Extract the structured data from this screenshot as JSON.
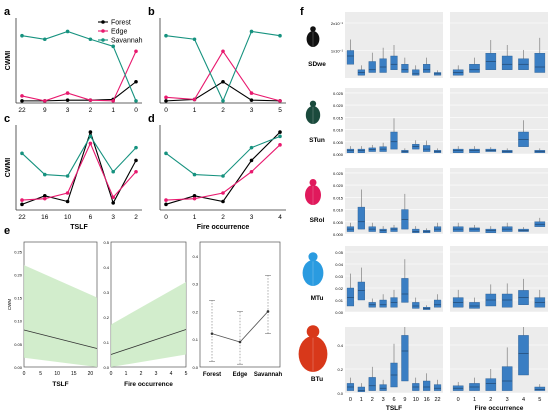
{
  "panel_letters": {
    "a": "a",
    "b": "b",
    "c": "c",
    "d": "d",
    "e": "e",
    "f": "f"
  },
  "colors": {
    "forest": "#000000",
    "edge": "#e8196e",
    "savannah": "#16927f",
    "band": "#cdebc6",
    "box": "#3a7ec3",
    "beetle_sdwe": "#111111",
    "beetle_stun": "#1a4a3c",
    "beetle_srol": "#e0195c",
    "beetle_mtu": "#2a9be0",
    "beetle_btu": "#d8381a"
  },
  "chart_data": [
    {
      "id": "a",
      "type": "line",
      "ylabel": "CWMI",
      "categories": [
        "22",
        "9",
        "3",
        "2",
        "1",
        "0"
      ],
      "ylim": [
        0,
        0.12
      ],
      "series": [
        {
          "name": "Forest",
          "color": "#000000",
          "values": [
            0.003,
            0.003,
            0.004,
            0.004,
            0.005,
            0.03
          ]
        },
        {
          "name": "Edge",
          "color": "#e8196e",
          "values": [
            0.01,
            0.003,
            0.014,
            0.004,
            0.003,
            0.073
          ]
        },
        {
          "name": "Savannah",
          "color": "#16927f",
          "values": [
            0.095,
            0.09,
            0.101,
            0.09,
            0.08,
            0.003
          ]
        }
      ],
      "legend": {
        "placement": "top-right",
        "items": [
          "Forest",
          "Edge",
          "Savannah"
        ]
      }
    },
    {
      "id": "b",
      "type": "line",
      "categories": [
        "0",
        "1",
        "2",
        "3",
        "5"
      ],
      "ylim": [
        0,
        0.12
      ],
      "series": [
        {
          "name": "Forest",
          "color": "#000000",
          "values": [
            0.003,
            0.005,
            0.03,
            0.004,
            0.003
          ]
        },
        {
          "name": "Edge",
          "color": "#e8196e",
          "values": [
            0.008,
            0.005,
            0.073,
            0.014,
            0.003
          ]
        },
        {
          "name": "Savannah",
          "color": "#16927f",
          "values": [
            0.095,
            0.09,
            0.003,
            0.101,
            0.095
          ]
        }
      ]
    },
    {
      "id": "c",
      "type": "line",
      "ylabel": "CWMI",
      "xlabel": "TSLF",
      "categories": [
        "22",
        "16",
        "10",
        "6",
        "3",
        "2"
      ],
      "ylim": [
        0,
        0.6
      ],
      "series": [
        {
          "name": "Forest",
          "color": "#000000",
          "values": [
            0.04,
            0.1,
            0.06,
            0.55,
            0.05,
            0.35
          ]
        },
        {
          "name": "Edge",
          "color": "#e8196e",
          "values": [
            0.07,
            0.08,
            0.12,
            0.47,
            0.09,
            0.27
          ]
        },
        {
          "name": "Savannah",
          "color": "#16927f",
          "values": [
            0.4,
            0.25,
            0.24,
            0.52,
            0.27,
            0.44
          ]
        }
      ]
    },
    {
      "id": "d",
      "type": "line",
      "xlabel": "Fire occurrence",
      "categories": [
        "0",
        "1",
        "2",
        "3",
        "4"
      ],
      "ylim": [
        0,
        0.6
      ],
      "series": [
        {
          "name": "Forest",
          "color": "#000000",
          "values": [
            0.04,
            0.1,
            0.06,
            0.35,
            0.55
          ]
        },
        {
          "name": "Edge",
          "color": "#e8196e",
          "values": [
            0.07,
            0.08,
            0.12,
            0.27,
            0.46
          ]
        },
        {
          "name": "Savannah",
          "color": "#16927f",
          "values": [
            0.4,
            0.25,
            0.24,
            0.44,
            0.52
          ]
        }
      ]
    },
    {
      "id": "e1",
      "type": "line",
      "ylabel": "CWM",
      "xlabel": "TSLF",
      "x": [
        0,
        22
      ],
      "xlim": [
        0,
        22
      ],
      "xticks": [
        "0",
        "5",
        "10",
        "15",
        "20"
      ],
      "ylim": [
        0,
        0.27
      ],
      "yticks": [
        "0.00",
        "0.05",
        "0.10",
        "0.15",
        "0.20",
        "0.25"
      ],
      "fit": {
        "y0": 0.08,
        "y1": 0.04
      },
      "band": {
        "lo0": 0.02,
        "lo1": 0.0,
        "hi0": 0.22,
        "hi1": 0.15
      }
    },
    {
      "id": "e2",
      "type": "line",
      "xlabel": "Fire occurrence",
      "xlim": [
        0,
        5
      ],
      "xticks": [
        "0",
        "1",
        "2",
        "3",
        "4",
        "5"
      ],
      "ylim": [
        0,
        0.5
      ],
      "yticks": [
        "0.0",
        "0.1",
        "0.2",
        "0.3",
        "0.4",
        "0.5"
      ],
      "fit": {
        "y0": 0.05,
        "y1": 0.15
      },
      "band": {
        "lo0": 0.0,
        "lo1": 0.05,
        "hi0": 0.17,
        "hi1": 0.34
      }
    },
    {
      "id": "e3",
      "type": "scatter",
      "categories": [
        "Forest",
        "Edge",
        "Savannah"
      ],
      "ylim": [
        0,
        0.45
      ],
      "yticks": [
        "0.0",
        "0.1",
        "0.2",
        "0.3",
        "0.4"
      ],
      "values": [
        0.12,
        0.09,
        0.2
      ],
      "err_lo": [
        0.02,
        0.01,
        0.12
      ],
      "err_hi": [
        0.24,
        0.2,
        0.33
      ]
    },
    {
      "id": "f",
      "type": "box",
      "rows": [
        {
          "label": "SDwe",
          "yticks": [
            "1x10⁻¹",
            "2x10⁻¹"
          ],
          "ylim": [
            0,
            2.4
          ],
          "tickvals": [
            1,
            2
          ],
          "left_boxes": [
            [
              0.5,
              0.8,
              1.0
            ],
            [
              0.1,
              0.2,
              0.3
            ],
            [
              0.2,
              0.3,
              0.6
            ],
            [
              0.2,
              0.4,
              0.7
            ],
            [
              0.3,
              0.5,
              0.8
            ],
            [
              0.2,
              0.3,
              0.5
            ],
            [
              0.1,
              0.15,
              0.3
            ],
            [
              0.2,
              0.3,
              0.5
            ],
            [
              0.1,
              0.15,
              0.2
            ]
          ],
          "right_boxes": [
            [
              0.1,
              0.2,
              0.3
            ],
            [
              0.2,
              0.3,
              0.5
            ],
            [
              0.3,
              0.6,
              0.9
            ],
            [
              0.3,
              0.5,
              0.8
            ],
            [
              0.3,
              0.5,
              0.7
            ],
            [
              0.2,
              0.4,
              0.9
            ]
          ]
        },
        {
          "label": "STun",
          "yticks": [
            "0.000",
            "0.005",
            "0.010",
            "0.015",
            "0.020",
            "0.025"
          ],
          "ylim": [
            0,
            0.027
          ],
          "tickvals": [
            0,
            0.005,
            0.01,
            0.015,
            0.02,
            0.025
          ],
          "left_boxes": [
            [
              0.0005,
              0.0015,
              0.002
            ],
            [
              0.0005,
              0.0015,
              0.002
            ],
            [
              0.001,
              0.0018,
              0.0025
            ],
            [
              0.001,
              0.002,
              0.003
            ],
            [
              0.002,
              0.005,
              0.009
            ],
            [
              0.0005,
              0.001,
              0.0015
            ],
            [
              0.002,
              0.003,
              0.004
            ],
            [
              0.001,
              0.002,
              0.0035
            ],
            [
              0.0005,
              0.001,
              0.0015
            ]
          ],
          "right_boxes": [
            [
              0.0005,
              0.0015,
              0.002
            ],
            [
              0.0005,
              0.0015,
              0.002
            ],
            [
              0.001,
              0.0015,
              0.002
            ],
            [
              0.0005,
              0.001,
              0.0015
            ],
            [
              0.003,
              0.006,
              0.009
            ],
            [
              0.0005,
              0.001,
              0.0015
            ]
          ]
        },
        {
          "label": "SRol",
          "yticks": [
            "0.000",
            "0.005",
            "0.010",
            "0.015",
            "0.020",
            "0.025"
          ],
          "ylim": [
            0,
            0.027
          ],
          "tickvals": [
            0,
            0.005,
            0.01,
            0.015,
            0.02,
            0.025
          ],
          "left_boxes": [
            [
              0.001,
              0.002,
              0.003
            ],
            [
              0.002,
              0.005,
              0.011
            ],
            [
              0.001,
              0.002,
              0.003
            ],
            [
              0.0005,
              0.0015,
              0.002
            ],
            [
              0.001,
              0.002,
              0.0025
            ],
            [
              0.002,
              0.006,
              0.01
            ],
            [
              0.0005,
              0.001,
              0.002
            ],
            [
              0.0005,
              0.001,
              0.0015
            ],
            [
              0.001,
              0.002,
              0.003
            ]
          ],
          "right_boxes": [
            [
              0.001,
              0.002,
              0.003
            ],
            [
              0.001,
              0.002,
              0.0025
            ],
            [
              0.0005,
              0.0015,
              0.002
            ],
            [
              0.001,
              0.002,
              0.003
            ],
            [
              0.001,
              0.0015,
              0.002
            ],
            [
              0.003,
              0.004,
              0.005
            ]
          ]
        },
        {
          "label": "MTu",
          "yticks": [
            "0.00",
            "0.01",
            "0.02",
            "0.03",
            "0.04",
            "0.05"
          ],
          "ylim": [
            0,
            0.055
          ],
          "tickvals": [
            0,
            0.01,
            0.02,
            0.03,
            0.04,
            0.05
          ],
          "left_boxes": [
            [
              0.005,
              0.012,
              0.02
            ],
            [
              0.01,
              0.018,
              0.025
            ],
            [
              0.004,
              0.006,
              0.008
            ],
            [
              0.004,
              0.006,
              0.01
            ],
            [
              0.004,
              0.008,
              0.012
            ],
            [
              0.008,
              0.015,
              0.028
            ],
            [
              0.003,
              0.005,
              0.008
            ],
            [
              0.002,
              0.003,
              0.004
            ],
            [
              0.004,
              0.006,
              0.01
            ]
          ],
          "right_boxes": [
            [
              0.004,
              0.008,
              0.012
            ],
            [
              0.003,
              0.005,
              0.008
            ],
            [
              0.005,
              0.01,
              0.015
            ],
            [
              0.004,
              0.01,
              0.015
            ],
            [
              0.006,
              0.012,
              0.018
            ],
            [
              0.004,
              0.008,
              0.012
            ]
          ]
        },
        {
          "label": "BTu",
          "yticks": [
            "0.0",
            "0.2",
            "0.4"
          ],
          "ylim": [
            0,
            0.55
          ],
          "tickvals": [
            0,
            0.2,
            0.4
          ],
          "left_boxes": [
            [
              0.02,
              0.05,
              0.08
            ],
            [
              0.01,
              0.02,
              0.05
            ],
            [
              0.02,
              0.06,
              0.13
            ],
            [
              0.02,
              0.04,
              0.07
            ],
            [
              0.05,
              0.15,
              0.25
            ],
            [
              0.1,
              0.35,
              0.48
            ],
            [
              0.02,
              0.05,
              0.08
            ],
            [
              0.02,
              0.05,
              0.1
            ],
            [
              0.02,
              0.04,
              0.07
            ]
          ],
          "right_boxes": [
            [
              0.02,
              0.04,
              0.06
            ],
            [
              0.02,
              0.05,
              0.08
            ],
            [
              0.02,
              0.08,
              0.12
            ],
            [
              0.02,
              0.1,
              0.22
            ],
            [
              0.15,
              0.33,
              0.48
            ],
            [
              0.02,
              0.03,
              0.05
            ]
          ]
        }
      ],
      "left_xticks": [
        "0",
        "1",
        "2",
        "3",
        "6",
        "9",
        "10",
        "16",
        "22"
      ],
      "right_xticks": [
        "0",
        "1",
        "2",
        "3",
        "4",
        "5"
      ],
      "left_xlabel": "TSLF",
      "right_xlabel": "Fire occurrence"
    }
  ]
}
